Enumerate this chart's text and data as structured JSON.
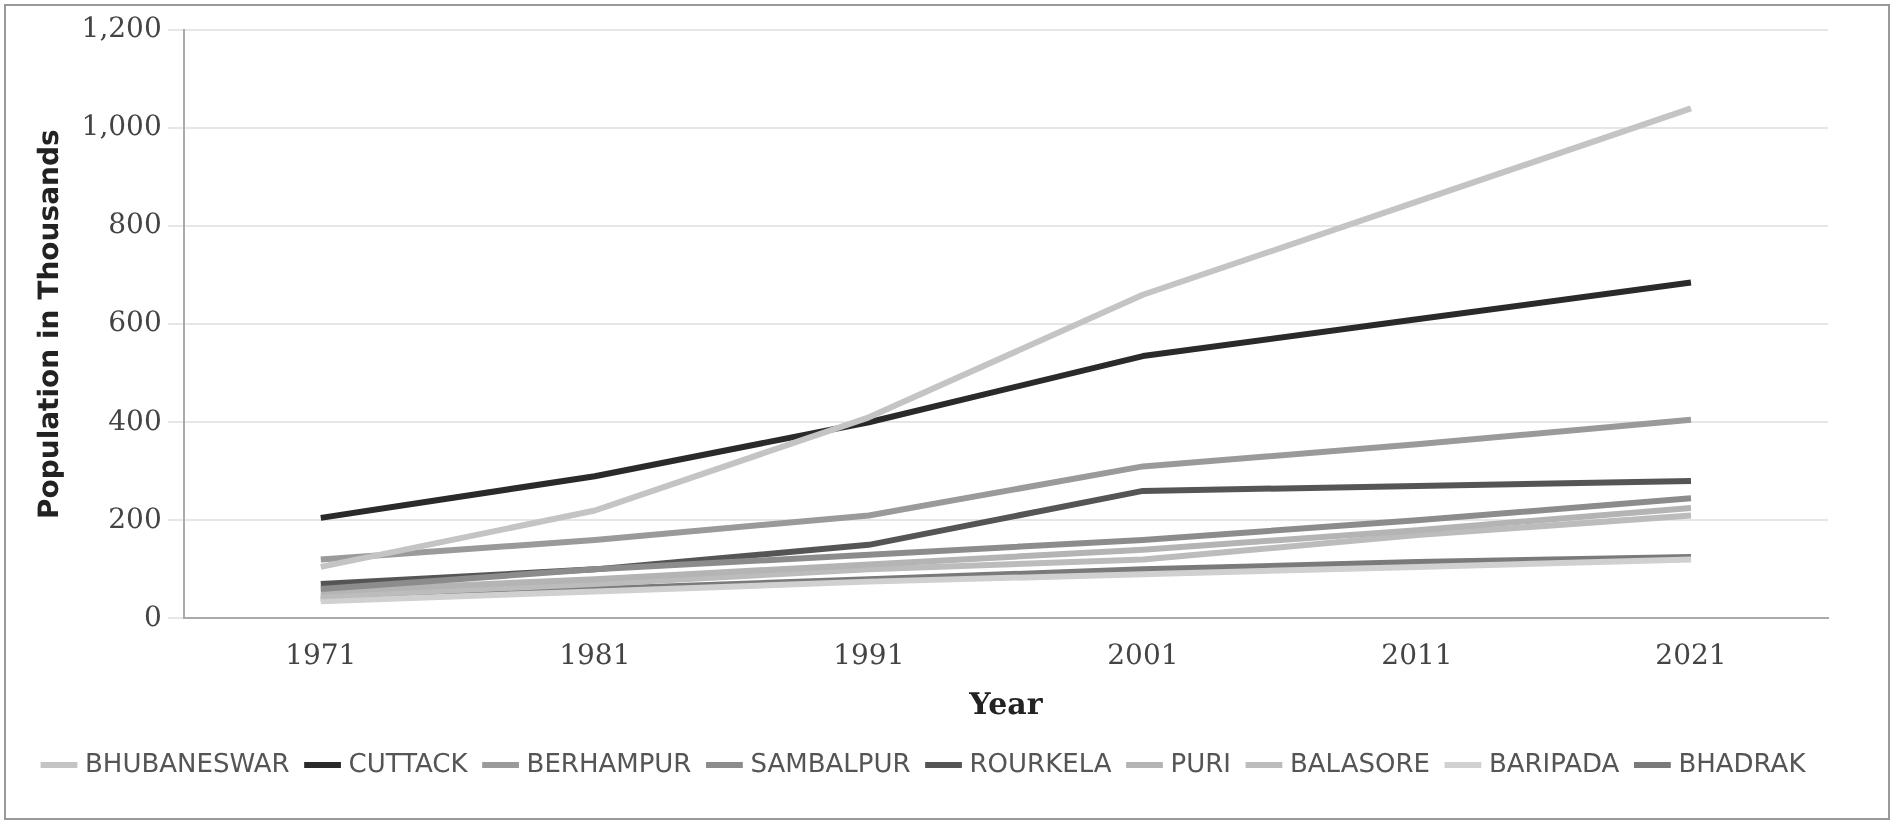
{
  "chart_data": {
    "type": "line",
    "xlabel": "Year",
    "ylabel": "Population in Thousands",
    "categories": [
      "1971",
      "1981",
      "1991",
      "2001",
      "2011",
      "2021"
    ],
    "ylim": [
      0,
      1200
    ],
    "yticks": [
      {
        "value": 0,
        "label": "0"
      },
      {
        "value": 200,
        "label": "200"
      },
      {
        "value": 400,
        "label": "400"
      },
      {
        "value": 600,
        "label": "600"
      },
      {
        "value": 800,
        "label": "800"
      },
      {
        "value": 1000,
        "label": "1,000"
      },
      {
        "value": 1200,
        "label": "1,200"
      }
    ],
    "grid": "y",
    "legend": "bottom",
    "marker": "none",
    "line_style": "solid",
    "series": [
      {
        "name": "BHUBANESWAR",
        "color": "#c4c4c4",
        "values": [
          105,
          220,
          410,
          660,
          850,
          1040
        ]
      },
      {
        "name": "CUTTACK",
        "color": "#2a2a2a",
        "values": [
          205,
          290,
          400,
          535,
          610,
          685
        ]
      },
      {
        "name": "BERHAMPUR",
        "color": "#9a9a9a",
        "values": [
          120,
          160,
          210,
          310,
          355,
          405
        ]
      },
      {
        "name": "SAMBALPUR",
        "color": "#8c8c8c",
        "values": [
          60,
          100,
          130,
          160,
          200,
          245
        ]
      },
      {
        "name": "ROURKELA",
        "color": "#555555",
        "values": [
          70,
          100,
          150,
          260,
          270,
          280
        ]
      },
      {
        "name": "PURI",
        "color": "#b4b4b4",
        "values": [
          55,
          80,
          110,
          140,
          180,
          225
        ]
      },
      {
        "name": "BALASORE",
        "color": "#bcbcbc",
        "values": [
          45,
          70,
          100,
          120,
          170,
          210
        ]
      },
      {
        "name": "BARIPADA",
        "color": "#d0d0d0",
        "values": [
          35,
          55,
          75,
          90,
          105,
          120
        ]
      },
      {
        "name": "BHADRAK",
        "color": "#7a7a7a",
        "values": [
          40,
          60,
          80,
          100,
          115,
          125
        ]
      }
    ]
  }
}
